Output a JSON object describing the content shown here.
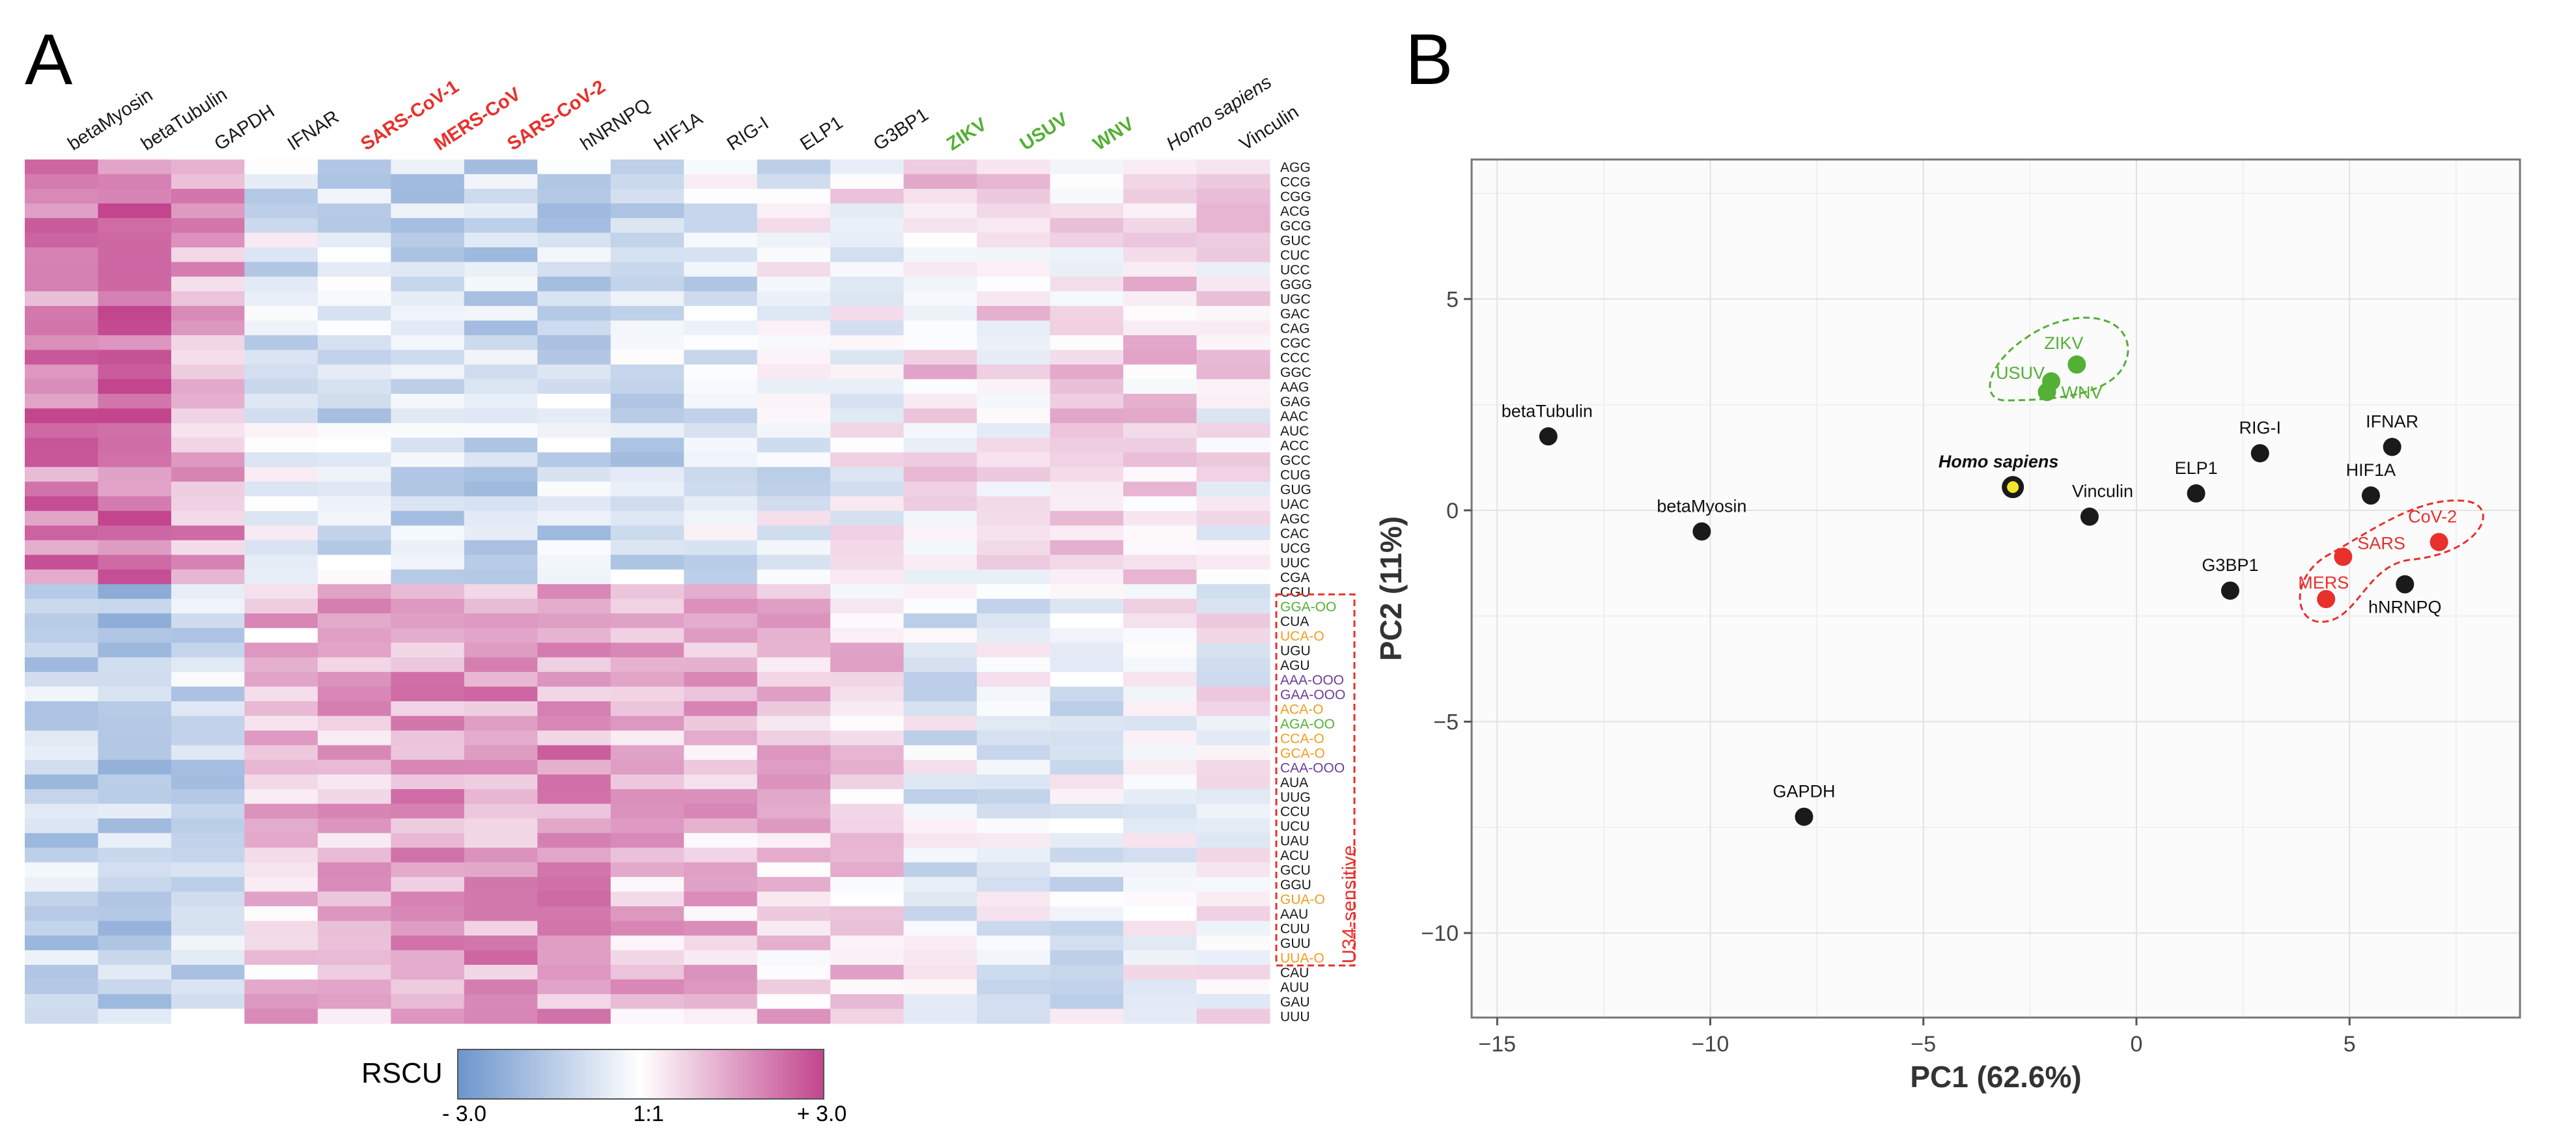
{
  "panels": {
    "a": "A",
    "b": "B"
  },
  "colors": {
    "low": "#6d95cd",
    "mid": "#ffffff",
    "high": "#c2458e",
    "red": "#e8302c",
    "green": "#53b034",
    "orange": "#f39c1e",
    "purple": "#6a3d9a",
    "black": "#1a1a1a",
    "yellow": "#f1e62a"
  },
  "heatmap": {
    "columns": [
      {
        "label": "betaMyosin",
        "color": "black",
        "style": "normal"
      },
      {
        "label": "betaTubulin",
        "color": "black",
        "style": "normal"
      },
      {
        "label": "GAPDH",
        "color": "black",
        "style": "normal"
      },
      {
        "label": "IFNAR",
        "color": "black",
        "style": "normal"
      },
      {
        "label": "SARS-CoV-1",
        "color": "red",
        "style": "bold"
      },
      {
        "label": "MERS-CoV",
        "color": "red",
        "style": "bold"
      },
      {
        "label": "SARS-CoV-2",
        "color": "red",
        "style": "bold"
      },
      {
        "label": "hNRNPQ",
        "color": "black",
        "style": "normal"
      },
      {
        "label": "HIF1A",
        "color": "black",
        "style": "normal"
      },
      {
        "label": "RIG-I",
        "color": "black",
        "style": "normal"
      },
      {
        "label": "ELP1",
        "color": "black",
        "style": "normal"
      },
      {
        "label": "G3BP1",
        "color": "black",
        "style": "normal"
      },
      {
        "label": "ZIKV",
        "color": "green",
        "style": "bold"
      },
      {
        "label": "USUV",
        "color": "green",
        "style": "bold"
      },
      {
        "label": "WNV",
        "color": "green",
        "style": "bold"
      },
      {
        "label": "Homo sapiens",
        "color": "black",
        "style": "italic"
      },
      {
        "label": "Vinculin",
        "color": "black",
        "style": "normal"
      }
    ],
    "rows": [
      {
        "label": "AGG",
        "color": "black"
      },
      {
        "label": "CCG",
        "color": "black"
      },
      {
        "label": "CGG",
        "color": "black"
      },
      {
        "label": "ACG",
        "color": "black"
      },
      {
        "label": "GCG",
        "color": "black"
      },
      {
        "label": "GUC",
        "color": "black"
      },
      {
        "label": "CUC",
        "color": "black"
      },
      {
        "label": "UCC",
        "color": "black"
      },
      {
        "label": "GGG",
        "color": "black"
      },
      {
        "label": "UGC",
        "color": "black"
      },
      {
        "label": "GAC",
        "color": "black"
      },
      {
        "label": "CAG",
        "color": "black"
      },
      {
        "label": "CGC",
        "color": "black"
      },
      {
        "label": "CCC",
        "color": "black"
      },
      {
        "label": "GGC",
        "color": "black"
      },
      {
        "label": "AAG",
        "color": "black"
      },
      {
        "label": "GAG",
        "color": "black"
      },
      {
        "label": "AAC",
        "color": "black"
      },
      {
        "label": "AUC",
        "color": "black"
      },
      {
        "label": "ACC",
        "color": "black"
      },
      {
        "label": "GCC",
        "color": "black"
      },
      {
        "label": "CUG",
        "color": "black"
      },
      {
        "label": "GUG",
        "color": "black"
      },
      {
        "label": "UAC",
        "color": "black"
      },
      {
        "label": "AGC",
        "color": "black"
      },
      {
        "label": "CAC",
        "color": "black"
      },
      {
        "label": "UCG",
        "color": "black"
      },
      {
        "label": "UUC",
        "color": "black"
      },
      {
        "label": "CGA",
        "color": "black"
      },
      {
        "label": "CGU",
        "color": "black"
      },
      {
        "label": "GGA-OO",
        "color": "green"
      },
      {
        "label": "CUA",
        "color": "black"
      },
      {
        "label": "UCA-O",
        "color": "orange"
      },
      {
        "label": "UGU",
        "color": "black"
      },
      {
        "label": "AGU",
        "color": "black"
      },
      {
        "label": "AAA-OOO",
        "color": "purple"
      },
      {
        "label": "GAA-OOO",
        "color": "purple"
      },
      {
        "label": "ACA-O",
        "color": "orange"
      },
      {
        "label": "AGA-OO",
        "color": "green"
      },
      {
        "label": "CCA-O",
        "color": "orange"
      },
      {
        "label": "GCA-O",
        "color": "orange"
      },
      {
        "label": "CAA-OOO",
        "color": "purple"
      },
      {
        "label": "AUA",
        "color": "black"
      },
      {
        "label": "UUG",
        "color": "black"
      },
      {
        "label": "CCU",
        "color": "black"
      },
      {
        "label": "UCU",
        "color": "black"
      },
      {
        "label": "UAU",
        "color": "black"
      },
      {
        "label": "ACU",
        "color": "black"
      },
      {
        "label": "GCU",
        "color": "black"
      },
      {
        "label": "GGU",
        "color": "black"
      },
      {
        "label": "GUA-O",
        "color": "orange"
      },
      {
        "label": "AAU",
        "color": "black"
      },
      {
        "label": "CUU",
        "color": "black"
      },
      {
        "label": "GUU",
        "color": "black"
      },
      {
        "label": "UUA-O",
        "color": "orange"
      },
      {
        "label": "CAU",
        "color": "black"
      },
      {
        "label": "AUU",
        "color": "black"
      },
      {
        "label": "GAU",
        "color": "black"
      },
      {
        "label": "UUU",
        "color": "black"
      }
    ],
    "u34_label": "U34-sensitive",
    "legend": {
      "title": "RSCU",
      "min_label": "- 3.0",
      "mid_label": "1:1",
      "max_label": "+ 3.0",
      "min": -3.0,
      "max": 3.0
    }
  },
  "chart_data": [
    {
      "type": "heatmap",
      "title": "",
      "value_range": [
        -3.0,
        3.0
      ],
      "colorbar_label": "RSCU",
      "row_groups": [
        {
          "rows": "AGG..CGA",
          "trend": "negative for coronaviruses, IFNAR, HIF1A, RIG-I, hNRNPQ; positive for betaMyosin, betaTubulin, GAPDH"
        },
        {
          "rows": "CGU..UUU",
          "trend": "positive for coronaviruses and host stress genes; negative for betaMyosin, betaTubulin, GAPDH"
        }
      ],
      "note": "Cell values estimated from colour: values in RSCU z-scale"
    },
    {
      "type": "scatter",
      "title": "",
      "xlabel": "PC1 (62.6%)",
      "ylabel": "PC2 (11%)",
      "xlim": [
        -15.6,
        9.0
      ],
      "ylim": [
        -12.0,
        8.3
      ],
      "xticks": [
        -15,
        -10,
        -5,
        0,
        5
      ],
      "yticks": [
        5,
        0,
        -5,
        -10
      ],
      "grid": true,
      "points": [
        {
          "name": "betaTubulin",
          "x": -13.8,
          "y": 1.75,
          "group": "host"
        },
        {
          "name": "betaMyosin",
          "x": -10.2,
          "y": -0.5,
          "group": "host"
        },
        {
          "name": "GAPDH",
          "x": -7.8,
          "y": -7.25,
          "group": "host"
        },
        {
          "name": "Homo sapiens",
          "x": -2.9,
          "y": 0.55,
          "group": "reference"
        },
        {
          "name": "Vinculin",
          "x": -1.1,
          "y": -0.15,
          "group": "host"
        },
        {
          "name": "ELP1",
          "x": 1.4,
          "y": 0.4,
          "group": "host"
        },
        {
          "name": "RIG-I",
          "x": 2.9,
          "y": 1.35,
          "group": "host"
        },
        {
          "name": "G3BP1",
          "x": 2.2,
          "y": -1.9,
          "group": "host"
        },
        {
          "name": "IFNAR",
          "x": 6.0,
          "y": 1.5,
          "group": "host"
        },
        {
          "name": "HIF1A",
          "x": 5.5,
          "y": 0.35,
          "group": "host"
        },
        {
          "name": "hNRNPQ",
          "x": 6.3,
          "y": -1.75,
          "group": "host"
        },
        {
          "name": "ZIKV",
          "x": -1.4,
          "y": 3.45,
          "group": "flavivirus"
        },
        {
          "name": "USUV",
          "x": -2.0,
          "y": 3.05,
          "group": "flavivirus"
        },
        {
          "name": "WNV",
          "x": -2.1,
          "y": 2.8,
          "group": "flavivirus"
        },
        {
          "name": "CoV-2",
          "x": 7.1,
          "y": -0.75,
          "group": "coronavirus"
        },
        {
          "name": "SARS",
          "x": 4.85,
          "y": -1.1,
          "group": "coronavirus"
        },
        {
          "name": "MERS",
          "x": 4.45,
          "y": -2.1,
          "group": "coronavirus"
        }
      ]
    }
  ]
}
